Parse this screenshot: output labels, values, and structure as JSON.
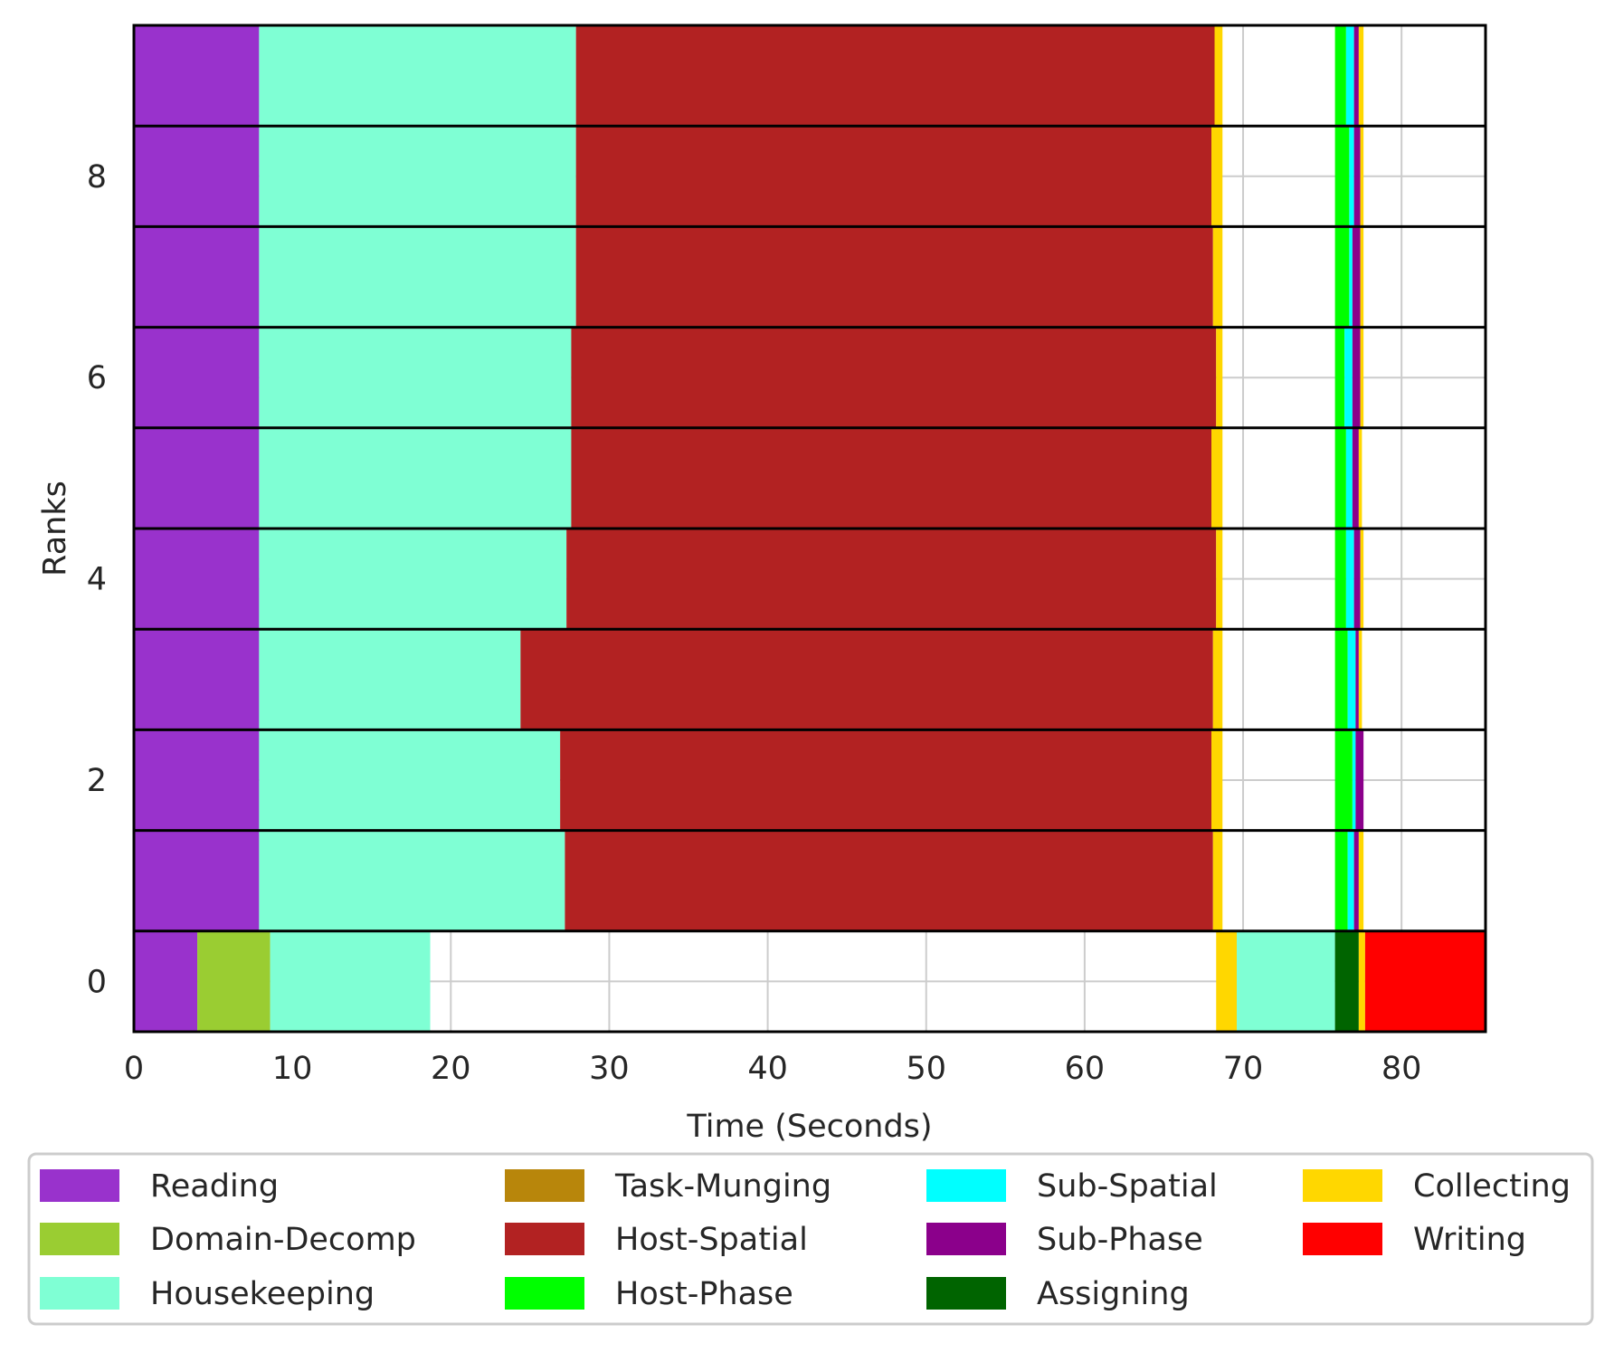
{
  "chart_data": {
    "type": "bar",
    "orientation": "horizontal-stacked-timeline",
    "xlabel": "Time (Seconds)",
    "ylabel": "Ranks",
    "xlim": [
      0,
      85.3
    ],
    "ylim": [
      -0.5,
      9.5
    ],
    "xticks": [
      0,
      10,
      20,
      30,
      40,
      50,
      60,
      70,
      80
    ],
    "yticks": [
      0,
      2,
      4,
      6,
      8
    ],
    "grid": true,
    "legend_position": "bottom",
    "legend": [
      {
        "label": "Reading",
        "color": "#9932CC"
      },
      {
        "label": "Domain-Decomp",
        "color": "#9ACD32"
      },
      {
        "label": "Housekeeping",
        "color": "#7FFFD4"
      },
      {
        "label": "Task-Munging",
        "color": "#B8860B"
      },
      {
        "label": "Host-Spatial",
        "color": "#B22222"
      },
      {
        "label": "Host-Phase",
        "color": "#00FF00"
      },
      {
        "label": "Sub-Spatial",
        "color": "#00FFFF"
      },
      {
        "label": "Sub-Phase",
        "color": "#8B008B"
      },
      {
        "label": "Assigning",
        "color": "#006400"
      },
      {
        "label": "Collecting",
        "color": "#FFD700"
      },
      {
        "label": "Writing",
        "color": "#FF0000"
      }
    ],
    "ranks": [
      {
        "rank": 0,
        "segments": [
          {
            "phase": "Reading",
            "start": 0,
            "end": 4.0
          },
          {
            "phase": "Domain-Decomp",
            "start": 4.0,
            "end": 8.6
          },
          {
            "phase": "Housekeeping",
            "start": 8.6,
            "end": 18.7
          },
          {
            "phase": "Collecting",
            "start": 68.3,
            "end": 69.6
          },
          {
            "phase": "Housekeeping",
            "start": 69.6,
            "end": 75.8
          },
          {
            "phase": "Assigning",
            "start": 75.8,
            "end": 77.3
          },
          {
            "phase": "Collecting",
            "start": 77.3,
            "end": 77.7
          },
          {
            "phase": "Writing",
            "start": 77.7,
            "end": 85.3
          }
        ]
      },
      {
        "rank": 1,
        "segments": [
          {
            "phase": "Reading",
            "start": 0,
            "end": 7.9
          },
          {
            "phase": "Housekeeping",
            "start": 7.9,
            "end": 27.2
          },
          {
            "phase": "Host-Spatial",
            "start": 27.2,
            "end": 68.1
          },
          {
            "phase": "Collecting",
            "start": 68.1,
            "end": 68.7
          },
          {
            "phase": "Host-Phase",
            "start": 75.8,
            "end": 76.6
          },
          {
            "phase": "Sub-Spatial",
            "start": 76.6,
            "end": 77.0
          },
          {
            "phase": "Sub-Phase",
            "start": 77.0,
            "end": 77.3
          },
          {
            "phase": "Collecting",
            "start": 77.3,
            "end": 77.6
          }
        ]
      },
      {
        "rank": 2,
        "segments": [
          {
            "phase": "Reading",
            "start": 0,
            "end": 7.9
          },
          {
            "phase": "Housekeeping",
            "start": 7.9,
            "end": 26.9
          },
          {
            "phase": "Host-Spatial",
            "start": 26.9,
            "end": 68.0
          },
          {
            "phase": "Collecting",
            "start": 68.0,
            "end": 68.7
          },
          {
            "phase": "Host-Phase",
            "start": 75.8,
            "end": 76.9
          },
          {
            "phase": "Sub-Spatial",
            "start": 76.9,
            "end": 77.1
          },
          {
            "phase": "Sub-Phase",
            "start": 77.1,
            "end": 77.6
          }
        ]
      },
      {
        "rank": 3,
        "segments": [
          {
            "phase": "Reading",
            "start": 0,
            "end": 7.9
          },
          {
            "phase": "Housekeeping",
            "start": 7.9,
            "end": 24.4
          },
          {
            "phase": "Host-Spatial",
            "start": 24.4,
            "end": 68.1
          },
          {
            "phase": "Collecting",
            "start": 68.1,
            "end": 68.7
          },
          {
            "phase": "Host-Phase",
            "start": 75.8,
            "end": 76.6
          },
          {
            "phase": "Sub-Spatial",
            "start": 76.6,
            "end": 77.1
          },
          {
            "phase": "Sub-Phase",
            "start": 77.1,
            "end": 77.3
          },
          {
            "phase": "Collecting",
            "start": 77.3,
            "end": 77.5
          }
        ]
      },
      {
        "rank": 4,
        "segments": [
          {
            "phase": "Reading",
            "start": 0,
            "end": 7.9
          },
          {
            "phase": "Housekeeping",
            "start": 7.9,
            "end": 27.3
          },
          {
            "phase": "Host-Spatial",
            "start": 27.3,
            "end": 68.3
          },
          {
            "phase": "Collecting",
            "start": 68.3,
            "end": 68.7
          },
          {
            "phase": "Host-Phase",
            "start": 75.8,
            "end": 76.5
          },
          {
            "phase": "Sub-Spatial",
            "start": 76.5,
            "end": 77.0
          },
          {
            "phase": "Sub-Phase",
            "start": 77.0,
            "end": 77.4
          },
          {
            "phase": "Collecting",
            "start": 77.4,
            "end": 77.6
          }
        ]
      },
      {
        "rank": 5,
        "segments": [
          {
            "phase": "Reading",
            "start": 0,
            "end": 7.9
          },
          {
            "phase": "Housekeeping",
            "start": 7.9,
            "end": 27.6
          },
          {
            "phase": "Host-Spatial",
            "start": 27.6,
            "end": 68.0
          },
          {
            "phase": "Collecting",
            "start": 68.0,
            "end": 68.7
          },
          {
            "phase": "Host-Phase",
            "start": 75.8,
            "end": 76.5
          },
          {
            "phase": "Sub-Spatial",
            "start": 76.5,
            "end": 76.9
          },
          {
            "phase": "Sub-Phase",
            "start": 76.9,
            "end": 77.3
          },
          {
            "phase": "Collecting",
            "start": 77.3,
            "end": 77.5
          }
        ]
      },
      {
        "rank": 6,
        "segments": [
          {
            "phase": "Reading",
            "start": 0,
            "end": 7.9
          },
          {
            "phase": "Housekeeping",
            "start": 7.9,
            "end": 27.6
          },
          {
            "phase": "Host-Spatial",
            "start": 27.6,
            "end": 68.3
          },
          {
            "phase": "Collecting",
            "start": 68.3,
            "end": 68.7
          },
          {
            "phase": "Host-Phase",
            "start": 75.8,
            "end": 76.4
          },
          {
            "phase": "Sub-Spatial",
            "start": 76.4,
            "end": 76.9
          },
          {
            "phase": "Sub-Phase",
            "start": 76.9,
            "end": 77.4
          },
          {
            "phase": "Collecting",
            "start": 77.4,
            "end": 77.6
          }
        ]
      },
      {
        "rank": 7,
        "segments": [
          {
            "phase": "Reading",
            "start": 0,
            "end": 7.9
          },
          {
            "phase": "Housekeeping",
            "start": 7.9,
            "end": 27.9
          },
          {
            "phase": "Host-Spatial",
            "start": 27.9,
            "end": 68.1
          },
          {
            "phase": "Collecting",
            "start": 68.1,
            "end": 68.7
          },
          {
            "phase": "Host-Phase",
            "start": 75.8,
            "end": 76.7
          },
          {
            "phase": "Sub-Spatial",
            "start": 76.7,
            "end": 76.9
          },
          {
            "phase": "Sub-Phase",
            "start": 76.9,
            "end": 77.4
          },
          {
            "phase": "Collecting",
            "start": 77.4,
            "end": 77.6
          }
        ]
      },
      {
        "rank": 8,
        "segments": [
          {
            "phase": "Reading",
            "start": 0,
            "end": 7.9
          },
          {
            "phase": "Housekeeping",
            "start": 7.9,
            "end": 27.9
          },
          {
            "phase": "Host-Spatial",
            "start": 27.9,
            "end": 68.0
          },
          {
            "phase": "Collecting",
            "start": 68.0,
            "end": 68.7
          },
          {
            "phase": "Host-Phase",
            "start": 75.8,
            "end": 76.7
          },
          {
            "phase": "Sub-Spatial",
            "start": 76.7,
            "end": 77.0
          },
          {
            "phase": "Sub-Phase",
            "start": 77.0,
            "end": 77.4
          },
          {
            "phase": "Collecting",
            "start": 77.4,
            "end": 77.6
          }
        ]
      },
      {
        "rank": 9,
        "segments": [
          {
            "phase": "Reading",
            "start": 0,
            "end": 7.9
          },
          {
            "phase": "Housekeeping",
            "start": 7.9,
            "end": 27.9
          },
          {
            "phase": "Host-Spatial",
            "start": 27.9,
            "end": 68.2
          },
          {
            "phase": "Collecting",
            "start": 68.2,
            "end": 68.7
          },
          {
            "phase": "Host-Phase",
            "start": 75.8,
            "end": 76.5
          },
          {
            "phase": "Sub-Spatial",
            "start": 76.5,
            "end": 77.0
          },
          {
            "phase": "Sub-Phase",
            "start": 77.0,
            "end": 77.3
          },
          {
            "phase": "Collecting",
            "start": 77.3,
            "end": 77.6
          }
        ]
      }
    ]
  }
}
